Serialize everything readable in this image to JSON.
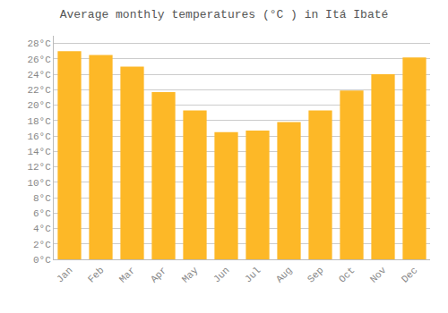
{
  "chart_data": {
    "type": "bar",
    "title": "Average monthly temperatures (°C ) in Itá Ibaté",
    "categories": [
      "Jan",
      "Feb",
      "Mar",
      "Apr",
      "May",
      "Jun",
      "Jul",
      "Aug",
      "Sep",
      "Oct",
      "Nov",
      "Dec"
    ],
    "values": [
      27.0,
      26.5,
      25.0,
      21.7,
      19.3,
      16.5,
      16.7,
      17.8,
      19.3,
      21.9,
      24.0,
      26.2
    ],
    "color": "#FDB827",
    "ylim": [
      0,
      29
    ],
    "yticks": [
      {
        "value": 0,
        "label": "0°C"
      },
      {
        "value": 2,
        "label": "2°C"
      },
      {
        "value": 4,
        "label": "4°C"
      },
      {
        "value": 6,
        "label": "6°C"
      },
      {
        "value": 8,
        "label": "8°C"
      },
      {
        "value": 10,
        "label": "10°C"
      },
      {
        "value": 12,
        "label": "12°C"
      },
      {
        "value": 14,
        "label": "14°C"
      },
      {
        "value": 16,
        "label": "16°C"
      },
      {
        "value": 18,
        "label": "18°C"
      },
      {
        "value": 20,
        "label": "20°C"
      },
      {
        "value": 22,
        "label": "22°C"
      },
      {
        "value": 24,
        "label": "24°C"
      },
      {
        "value": 26,
        "label": "26°C"
      },
      {
        "value": 28,
        "label": "28°C"
      }
    ],
    "grid": true
  }
}
